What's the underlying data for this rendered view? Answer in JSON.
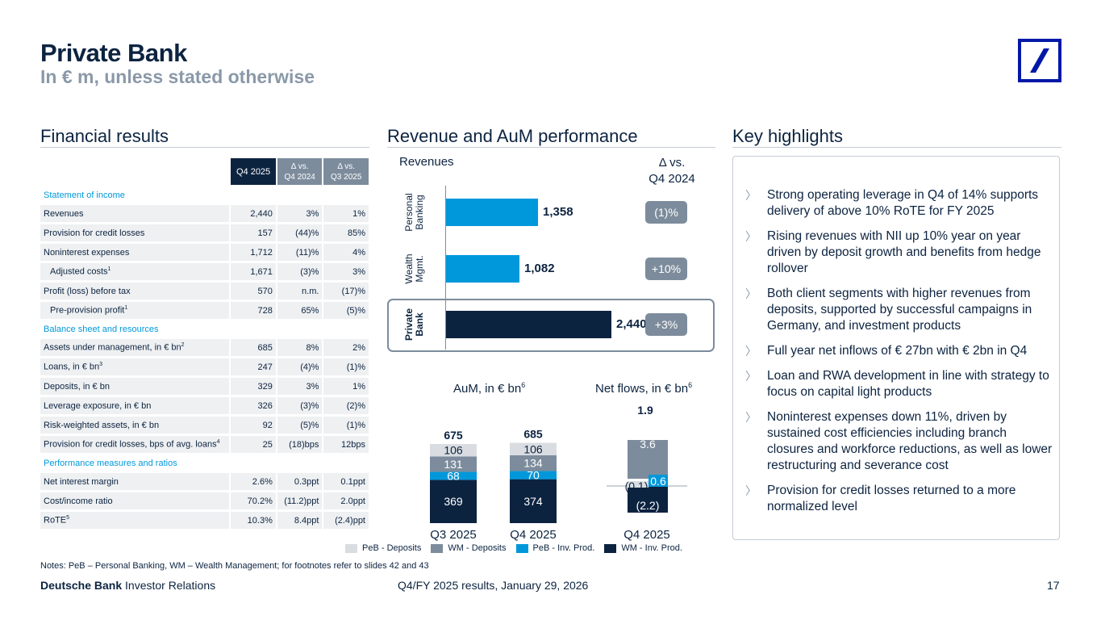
{
  "header": {
    "title": "Private Bank",
    "subtitle": "In € m, unless stated otherwise"
  },
  "sections": {
    "financial": "Financial results",
    "revenue": "Revenue and AuM performance",
    "highlights": "Key highlights"
  },
  "table": {
    "headers": [
      "Q4 2025",
      "Δ vs.\nQ4 2024",
      "Δ vs.\nQ3 2025"
    ],
    "sec_income": "Statement of income",
    "sec_balance": "Balance sheet and resources",
    "sec_perf": "Performance measures and ratios",
    "income": [
      {
        "label": "Revenues",
        "sup": "",
        "v": [
          "2,440",
          "3%",
          "1%"
        ]
      },
      {
        "label": "Provision for credit losses",
        "sup": "",
        "v": [
          "157",
          "(44)%",
          "85%"
        ]
      },
      {
        "label": "Noninterest expenses",
        "sup": "",
        "v": [
          "1,712",
          "(11)%",
          "4%"
        ]
      },
      {
        "label": "Adjusted costs",
        "sup": "1",
        "v": [
          "1,671",
          "(3)%",
          "3%"
        ]
      },
      {
        "label": "Profit (loss) before tax",
        "sup": "",
        "v": [
          "570",
          "n.m.",
          "(17)%"
        ]
      },
      {
        "label": "Pre-provision profit",
        "sup": "1",
        "v": [
          "728",
          "65%",
          "(5)%"
        ]
      }
    ],
    "balance": [
      {
        "label": "Assets under management, in € bn",
        "sup": "2",
        "v": [
          "685",
          "8%",
          "2%"
        ]
      },
      {
        "label": "Loans, in € bn",
        "sup": "3",
        "v": [
          "247",
          "(4)%",
          "(1)%"
        ]
      },
      {
        "label": "Deposits, in € bn",
        "sup": "",
        "v": [
          "329",
          "3%",
          "1%"
        ]
      },
      {
        "label": "Leverage exposure, in € bn",
        "sup": "",
        "v": [
          "326",
          "(3)%",
          "(2)%"
        ]
      },
      {
        "label": "Risk-weighted assets, in € bn",
        "sup": "",
        "v": [
          "92",
          "(5)%",
          "(1)%"
        ]
      },
      {
        "label": "Provision for credit losses, bps of avg. loans",
        "sup": "4",
        "v": [
          "25",
          "(18)bps",
          "12bps"
        ]
      }
    ],
    "perf": [
      {
        "label": "Net interest margin",
        "sup": "",
        "v": [
          "2.6%",
          "0.3ppt",
          "0.1ppt"
        ]
      },
      {
        "label": "Cost/income ratio",
        "sup": "",
        "v": [
          "70.2%",
          "(11.2)ppt",
          "2.0ppt"
        ]
      },
      {
        "label": "RoTE",
        "sup": "5",
        "v": [
          "10.3%",
          "8.4ppt",
          "(2.4)ppt"
        ]
      }
    ]
  },
  "revenues": {
    "label": "Revenues",
    "delta_label": "Δ vs.\nQ4 2024",
    "bars": [
      {
        "name": "Personal\nBanking",
        "value": 1358,
        "display": "1,358",
        "delta": "(1)%",
        "color": "#0098db"
      },
      {
        "name": "Wealth\nMgmt.",
        "value": 1082,
        "display": "1,082",
        "delta": "+10%",
        "color": "#0098db"
      },
      {
        "name": "Private\nBank",
        "value": 2440,
        "display": "2,440",
        "delta": "+3%",
        "color": "#0c2340"
      }
    ]
  },
  "chart_data": [
    {
      "type": "bar",
      "title": "AuM, in € bn",
      "title_sup": "6",
      "categories": [
        "Q3 2025",
        "Q4 2025"
      ],
      "series": [
        {
          "name": "WM - Inv. Prod.",
          "values": [
            369,
            374
          ],
          "color": "#0c2340"
        },
        {
          "name": "PeB - Inv. Prod.",
          "values": [
            68,
            70
          ],
          "color": "#0098db"
        },
        {
          "name": "WM - Deposits",
          "values": [
            131,
            134
          ],
          "color": "#7d8c9c"
        },
        {
          "name": "PeB - Deposits",
          "values": [
            106,
            106
          ],
          "color": "#d9dde1"
        }
      ],
      "totals": [
        "675",
        "685"
      ]
    },
    {
      "type": "bar",
      "title": "Net flows, in € bn",
      "title_sup": "6",
      "categories": [
        "Q4 2025"
      ],
      "series": [
        {
          "name": "WM - Inv. Prod.",
          "values": [
            -2.2
          ],
          "label": "(2.2)",
          "color": "#0c2340"
        },
        {
          "name": "PeB - Inv. Prod.",
          "values": [
            0.6
          ],
          "label": "0.6",
          "color": "#0098db"
        },
        {
          "name": "WM - Deposits",
          "values": [
            3.6
          ],
          "label": "3.6",
          "color": "#7d8c9c"
        },
        {
          "name": "PeB - Deposits",
          "values": [
            -0.1
          ],
          "label": "(0.1)",
          "color": "#d9dde1"
        }
      ],
      "totals": [
        "1.9"
      ]
    }
  ],
  "legend": [
    {
      "label": "PeB - Deposits",
      "color": "#d9dde1"
    },
    {
      "label": "WM - Deposits",
      "color": "#7d8c9c"
    },
    {
      "label": "PeB - Inv. Prod.",
      "color": "#0098db"
    },
    {
      "label": "WM - Inv. Prod.",
      "color": "#0c2340"
    }
  ],
  "highlights": [
    "Strong operating leverage in Q4 of 14% supports delivery of above 10% RoTE for FY 2025",
    "Rising revenues with NII up 10% year on year driven by deposit growth and benefits from hedge rollover",
    "Both client segments with higher revenues from deposits, supported by successful campaigns in Germany, and investment products",
    "Full year net inflows of € 27bn with € 2bn in Q4",
    "Loan and RWA development in line with strategy to focus on capital light products",
    "Noninterest expenses down 11%, driven by sustained cost efficiencies including branch closures and workforce reductions, as well as lower restructuring and severance cost",
    "Provision for credit losses returned to a more normalized level"
  ],
  "highlight_chevron": "〉",
  "footer": {
    "notes": "Notes: PeB – Personal Banking, WM – Wealth Management; for footnotes refer to slides 42 and 43",
    "brand_bold": "Deutsche Bank",
    "brand_rest": " Investor Relations",
    "center": "Q4/FY 2025 results, January 29, 2026",
    "page": "17"
  }
}
